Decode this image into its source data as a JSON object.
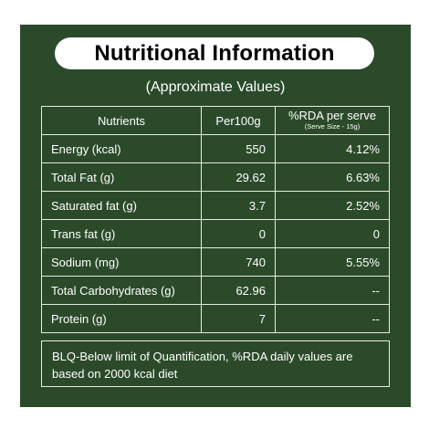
{
  "title": "Nutritional Information",
  "subtitle": "(Approximate Values)",
  "table": {
    "headers": {
      "nutrients": "Nutrients",
      "per100g": "Per100g",
      "rda": "%RDA per serve",
      "rda_sub": "(Serve Size - 15g)"
    },
    "rows": [
      {
        "nutrient": "Energy (kcal)",
        "per100g": "550",
        "rda": "4.12%"
      },
      {
        "nutrient": "Total Fat (g)",
        "per100g": "29.62",
        "rda": "6.63%"
      },
      {
        "nutrient": "Saturated fat (g)",
        "per100g": "3.7",
        "rda": "2.52%"
      },
      {
        "nutrient": "Trans fat (g)",
        "per100g": "0",
        "rda": "0"
      },
      {
        "nutrient": "Sodium (mg)",
        "per100g": "740",
        "rda": "5.55%"
      },
      {
        "nutrient": "Total Carbohydrates (g)",
        "per100g": "62.96",
        "rda": "--"
      },
      {
        "nutrient": "Protein (g)",
        "per100g": "7",
        "rda": "--"
      }
    ]
  },
  "footnote": "BLQ-Below limit of Quantification, %RDA daily values are based on 2000 kcal diet",
  "colors": {
    "panel_background": "#2b4a2a",
    "text": "#ffffff",
    "title_pill": "#ffffff"
  }
}
